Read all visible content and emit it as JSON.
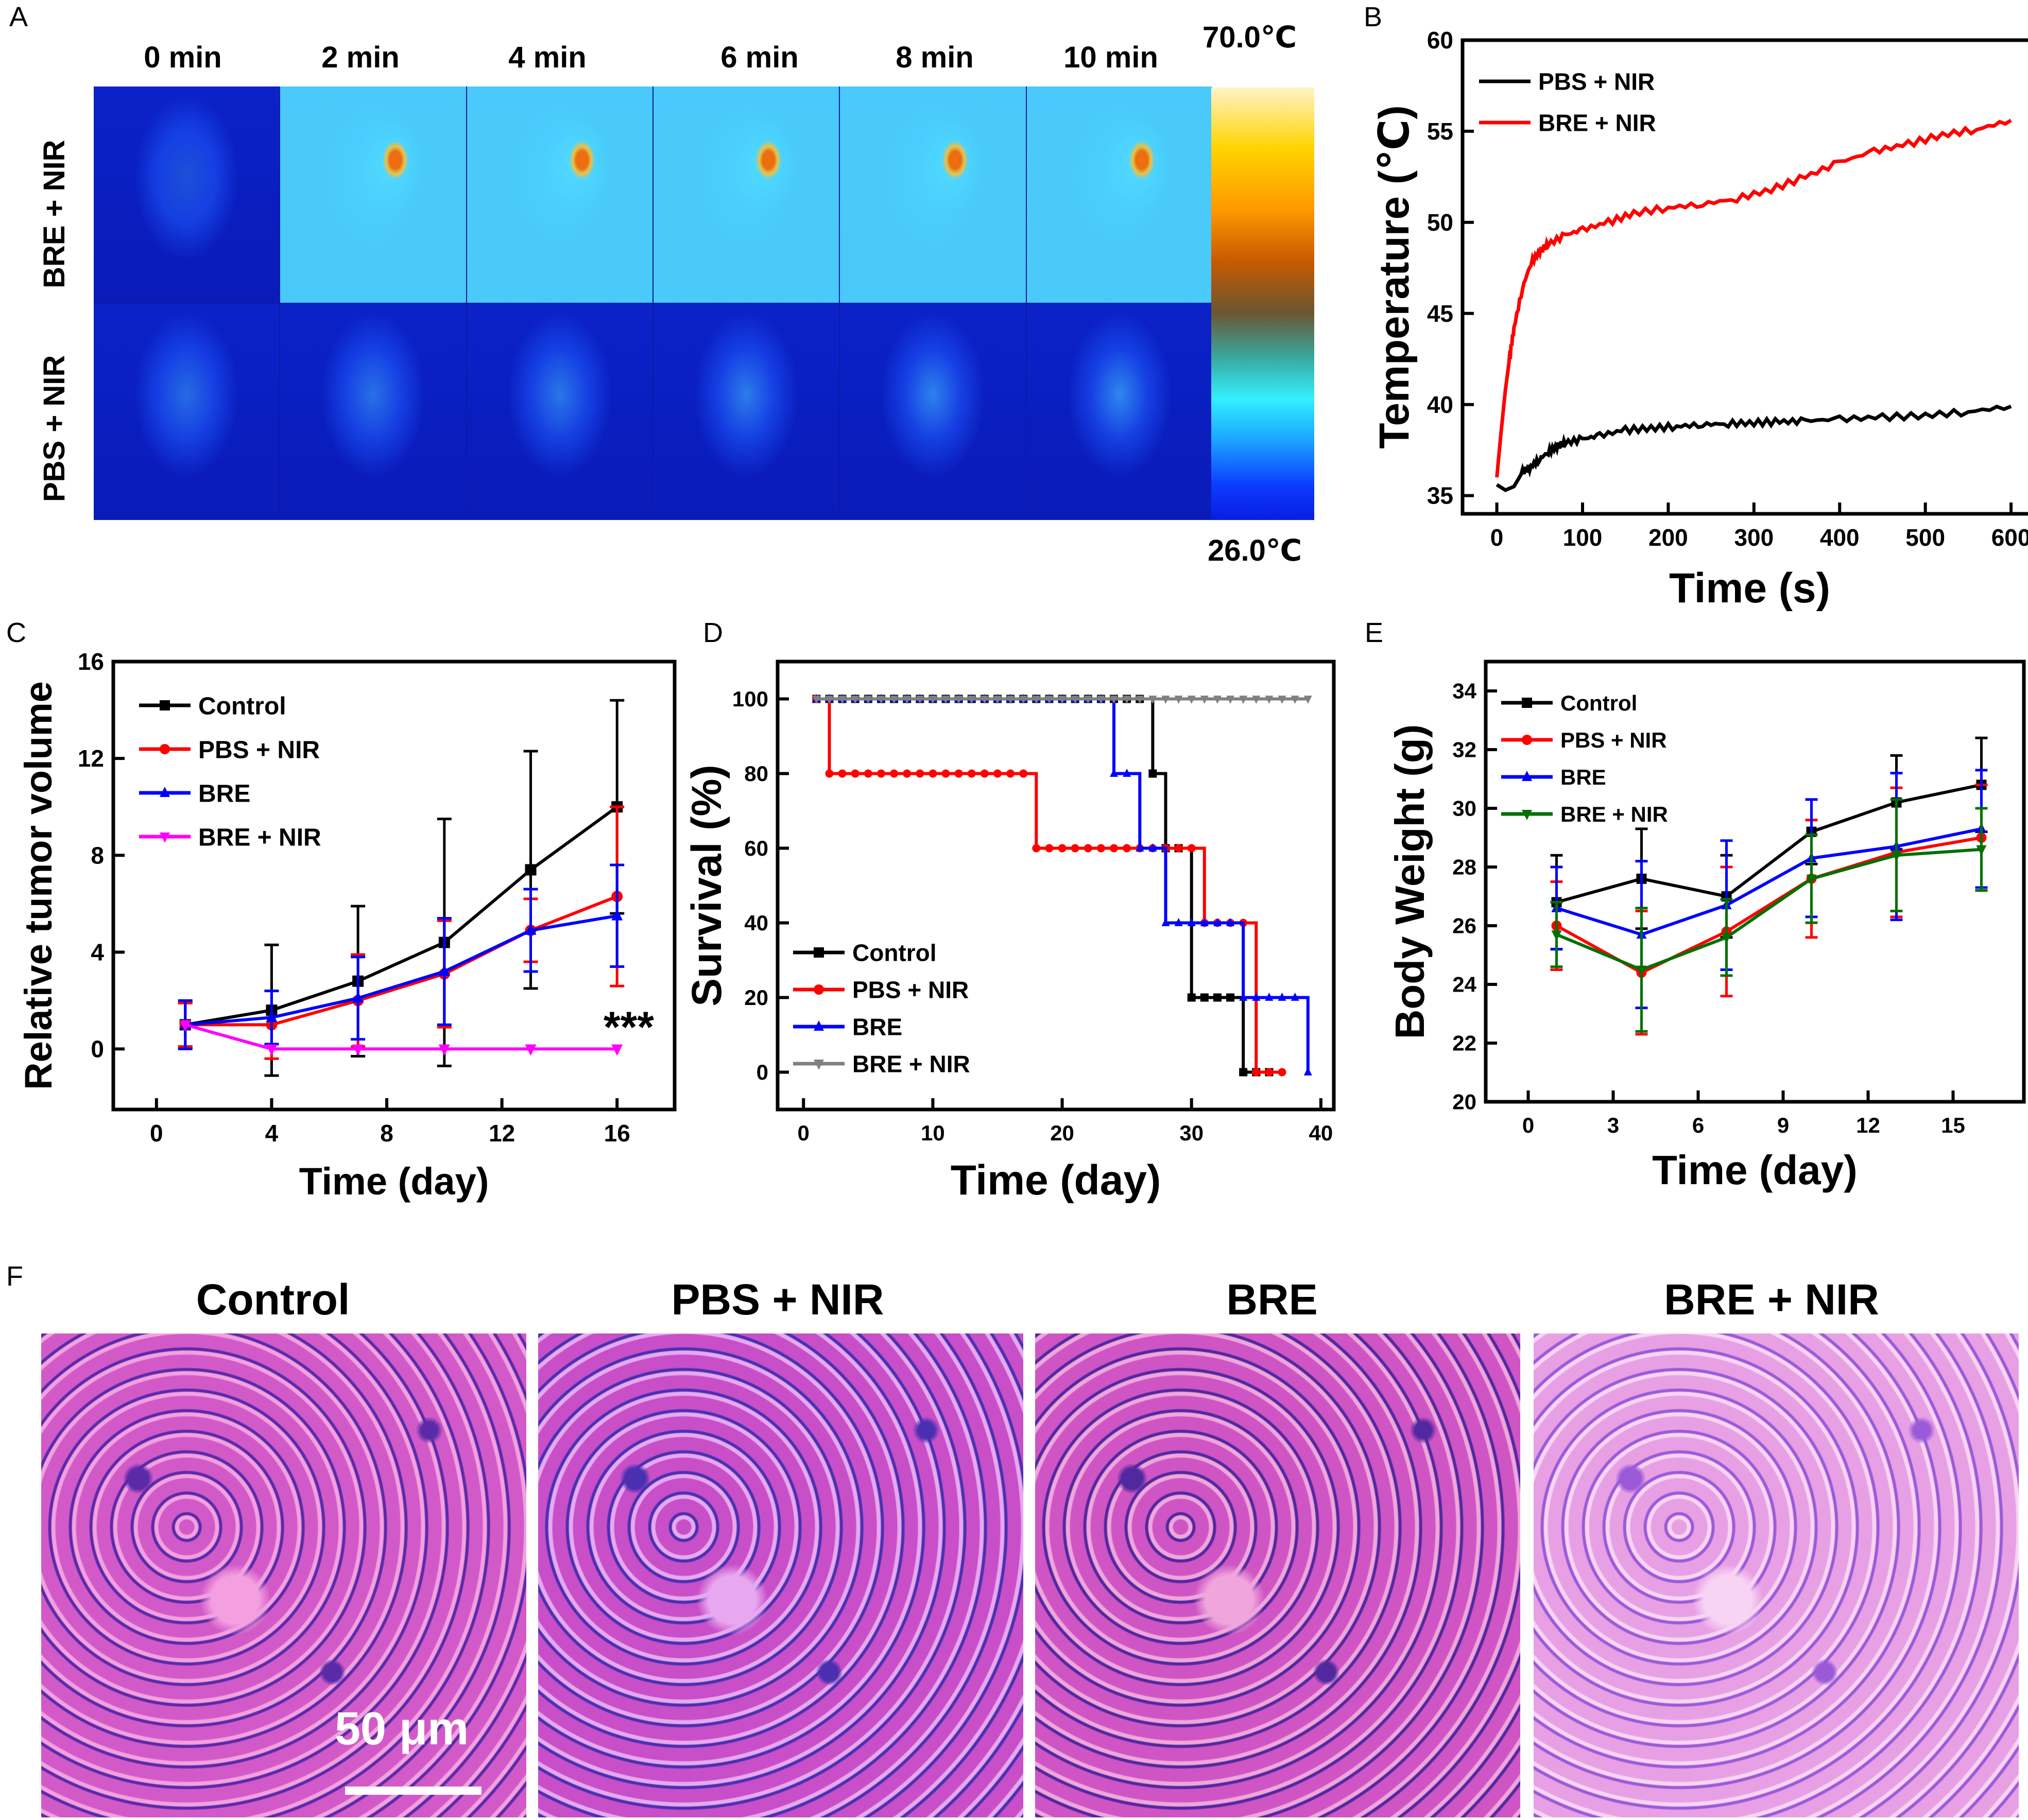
{
  "panels": {
    "A": {
      "letter": "A",
      "time_labels": [
        "0 min",
        "2 min",
        "4 min",
        "6 min",
        "8 min",
        "10 min"
      ],
      "row_labels": [
        "BRE + NIR",
        "PBS + NIR"
      ],
      "colorbar_max": "70.0℃",
      "colorbar_min": "26.0℃",
      "hotspot_color": "#e0701a"
    },
    "B": {
      "letter": "B"
    },
    "C": {
      "letter": "C"
    },
    "D": {
      "letter": "D"
    },
    "E": {
      "letter": "E"
    },
    "F": {
      "letter": "F",
      "titles": [
        "Control",
        "PBS + NIR",
        "BRE",
        "BRE + NIR"
      ],
      "scale_bar_label": "50 μm"
    }
  },
  "chart_data": [
    {
      "id": "B",
      "type": "line",
      "xlabel": "Time (s)",
      "ylabel": "Temperature (℃)",
      "xlim": [
        -40,
        630
      ],
      "ylim": [
        34,
        60
      ],
      "xticks": [
        0,
        100,
        200,
        300,
        400,
        500,
        600
      ],
      "yticks": [
        35,
        40,
        45,
        50,
        55,
        60
      ],
      "legend": "top-left",
      "series": [
        {
          "name": "PBS + NIR",
          "color": "#000000",
          "x": [
            0,
            10,
            20,
            30,
            40,
            50,
            60,
            70,
            80,
            100,
            120,
            150,
            180,
            210,
            240,
            270,
            300,
            330,
            360,
            400,
            450,
            500,
            550,
            600
          ],
          "y": [
            35.6,
            35.3,
            35.5,
            36.3,
            36.6,
            37.0,
            37.4,
            37.7,
            37.9,
            38.1,
            38.3,
            38.6,
            38.7,
            38.8,
            38.9,
            38.95,
            39.0,
            39.05,
            39.1,
            39.2,
            39.3,
            39.4,
            39.6,
            39.9
          ]
        },
        {
          "name": "BRE + NIR",
          "color": "#ff0000",
          "x": [
            0,
            5,
            10,
            15,
            20,
            30,
            40,
            50,
            60,
            80,
            100,
            130,
            160,
            200,
            240,
            280,
            320,
            360,
            400,
            440,
            480,
            520,
            560,
            600
          ],
          "y": [
            36.0,
            38.5,
            40.8,
            42.6,
            44.2,
            46.4,
            47.8,
            48.4,
            48.8,
            49.3,
            49.6,
            50.0,
            50.5,
            50.8,
            51.0,
            51.3,
            51.8,
            52.5,
            53.3,
            53.9,
            54.3,
            54.8,
            55.1,
            55.6
          ]
        }
      ]
    },
    {
      "id": "C",
      "type": "line",
      "xlabel": "Time (day)",
      "ylabel": "Relative tumor volume",
      "xlim": [
        -1.5,
        18
      ],
      "ylim": [
        -2.5,
        16
      ],
      "xticks": [
        0,
        4,
        8,
        12,
        16
      ],
      "yticks": [
        0,
        4,
        8,
        12,
        16
      ],
      "legend": "top-left",
      "annotation": "***",
      "x": [
        1,
        4,
        7,
        10,
        13,
        16
      ],
      "series": [
        {
          "name": "Control",
          "color": "#000000",
          "marker": "square",
          "values": [
            1.0,
            1.6,
            2.8,
            4.4,
            7.4,
            10.0
          ],
          "err": [
            0.9,
            2.7,
            3.1,
            5.1,
            4.9,
            4.4
          ]
        },
        {
          "name": "PBS + NIR",
          "color": "#ff0000",
          "marker": "circle",
          "values": [
            1.0,
            1.0,
            2.0,
            3.1,
            4.9,
            6.3
          ],
          "err": [
            0.9,
            1.4,
            1.9,
            2.2,
            1.3,
            3.7
          ]
        },
        {
          "name": "BRE",
          "color": "#0000ff",
          "marker": "triangle",
          "values": [
            1.0,
            1.3,
            2.1,
            3.2,
            4.9,
            5.5
          ],
          "err": [
            1.0,
            1.1,
            1.7,
            2.2,
            1.7,
            2.1
          ]
        },
        {
          "name": "BRE + NIR",
          "color": "#ff00ff",
          "marker": "triangle-down",
          "values": [
            1.0,
            0.0,
            0.0,
            0.0,
            0.0,
            0.0
          ],
          "err": [
            0,
            0,
            0,
            0,
            0,
            0
          ]
        }
      ]
    },
    {
      "id": "D",
      "type": "line",
      "xlabel": "Time (day)",
      "ylabel": "Survival (%)",
      "xlim": [
        -2,
        41
      ],
      "ylim": [
        -10,
        110
      ],
      "xticks": [
        0,
        10,
        20,
        30,
        40
      ],
      "yticks": [
        0,
        20,
        40,
        60,
        80,
        100
      ],
      "legend": "bottom-left",
      "series": [
        {
          "name": "Control",
          "color": "#000000",
          "marker": "square",
          "steps": [
            [
              1,
              100
            ],
            [
              27,
              80
            ],
            [
              28,
              60
            ],
            [
              30,
              20
            ],
            [
              34,
              0
            ],
            [
              36,
              0
            ]
          ]
        },
        {
          "name": "PBS + NIR",
          "color": "#ff0000",
          "marker": "circle",
          "steps": [
            [
              1,
              100
            ],
            [
              2,
              80
            ],
            [
              18,
              60
            ],
            [
              31,
              40
            ],
            [
              35,
              0
            ],
            [
              37,
              0
            ]
          ]
        },
        {
          "name": "BRE",
          "color": "#0000ff",
          "marker": "triangle",
          "steps": [
            [
              1,
              100
            ],
            [
              24,
              80
            ],
            [
              26,
              60
            ],
            [
              28,
              40
            ],
            [
              34,
              20
            ],
            [
              39,
              0
            ]
          ]
        },
        {
          "name": "BRE + NIR",
          "color": "#808080",
          "marker": "triangle-down",
          "steps": [
            [
              1,
              100
            ],
            [
              39,
              100
            ]
          ]
        }
      ]
    },
    {
      "id": "E",
      "type": "line",
      "xlabel": "Time (day)",
      "ylabel": "Body Weight (g)",
      "xlim": [
        -1.5,
        17.5
      ],
      "ylim": [
        20,
        35
      ],
      "xticks": [
        0,
        3,
        6,
        9,
        12,
        15
      ],
      "yticks": [
        20,
        22,
        24,
        26,
        28,
        30,
        32,
        34
      ],
      "legend": "top-left",
      "x": [
        1,
        4,
        7,
        10,
        13,
        16
      ],
      "series": [
        {
          "name": "Control",
          "color": "#000000",
          "marker": "square",
          "values": [
            26.8,
            27.6,
            27.0,
            29.2,
            30.2,
            30.8
          ],
          "err": [
            1.6,
            1.7,
            1.4,
            1.1,
            1.6,
            1.6
          ]
        },
        {
          "name": "PBS + NIR",
          "color": "#ff0000",
          "marker": "circle",
          "values": [
            26.0,
            24.4,
            25.8,
            27.6,
            28.5,
            29.0
          ],
          "err": [
            1.5,
            2.1,
            2.2,
            2.0,
            2.2,
            1.8
          ]
        },
        {
          "name": "BRE",
          "color": "#0000ff",
          "marker": "triangle",
          "values": [
            26.6,
            25.7,
            26.7,
            28.3,
            28.7,
            29.3
          ],
          "err": [
            1.4,
            2.5,
            2.2,
            2.0,
            2.5,
            2.0
          ]
        },
        {
          "name": "BRE + NIR",
          "color": "#007000",
          "marker": "triangle-down",
          "values": [
            25.7,
            24.5,
            25.6,
            27.6,
            28.4,
            28.6
          ],
          "err": [
            1.1,
            2.1,
            1.3,
            1.5,
            1.9,
            1.4
          ]
        }
      ]
    }
  ]
}
